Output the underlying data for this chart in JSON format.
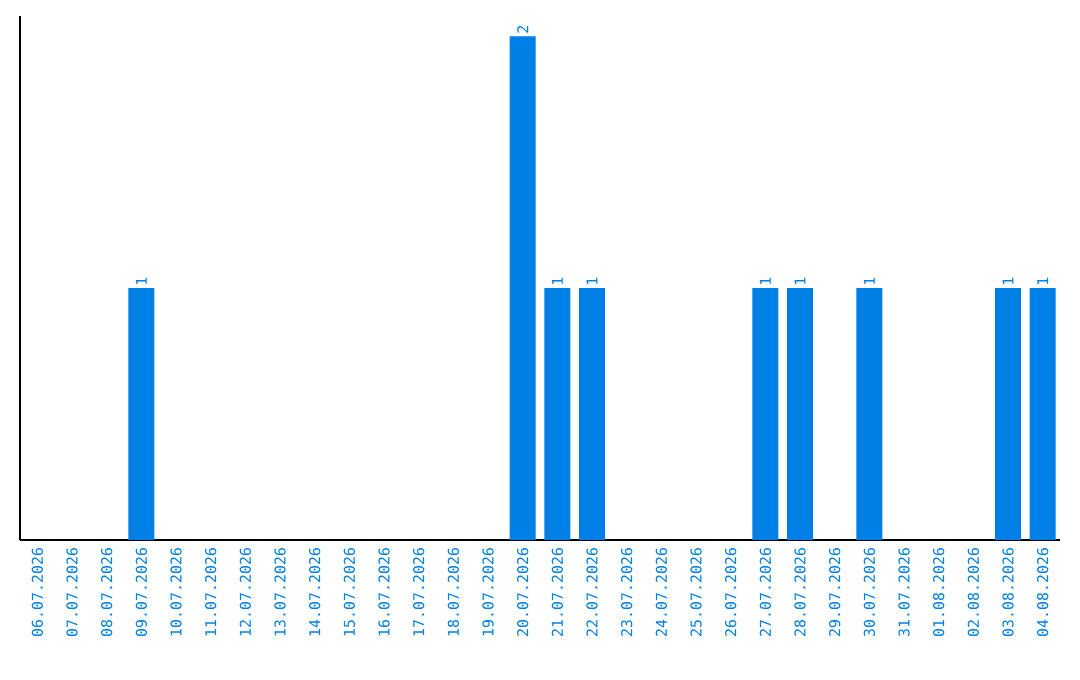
{
  "chart_data": {
    "type": "bar",
    "categories": [
      "06.07.2026",
      "07.07.2026",
      "08.07.2026",
      "09.07.2026",
      "10.07.2026",
      "11.07.2026",
      "12.07.2026",
      "13.07.2026",
      "14.07.2026",
      "15.07.2026",
      "16.07.2026",
      "17.07.2026",
      "18.07.2026",
      "19.07.2026",
      "20.07.2026",
      "21.07.2026",
      "22.07.2026",
      "23.07.2026",
      "24.07.2026",
      "25.07.2026",
      "26.07.2026",
      "27.07.2026",
      "28.07.2026",
      "29.07.2026",
      "30.07.2026",
      "31.07.2026",
      "01.08.2026",
      "02.08.2026",
      "03.08.2026",
      "04.08.2026"
    ],
    "values": [
      0,
      0,
      0,
      1,
      0,
      0,
      0,
      0,
      0,
      0,
      0,
      0,
      0,
      0,
      2,
      1,
      1,
      0,
      0,
      0,
      0,
      1,
      1,
      0,
      1,
      0,
      0,
      0,
      1,
      1
    ],
    "value_labels": [
      null,
      null,
      null,
      "1",
      null,
      null,
      null,
      null,
      null,
      null,
      null,
      null,
      null,
      null,
      "2",
      "1",
      "1",
      null,
      null,
      null,
      null,
      "1",
      "1",
      null,
      "1",
      null,
      null,
      null,
      "1",
      "1"
    ],
    "color": "#0080e6"
  }
}
